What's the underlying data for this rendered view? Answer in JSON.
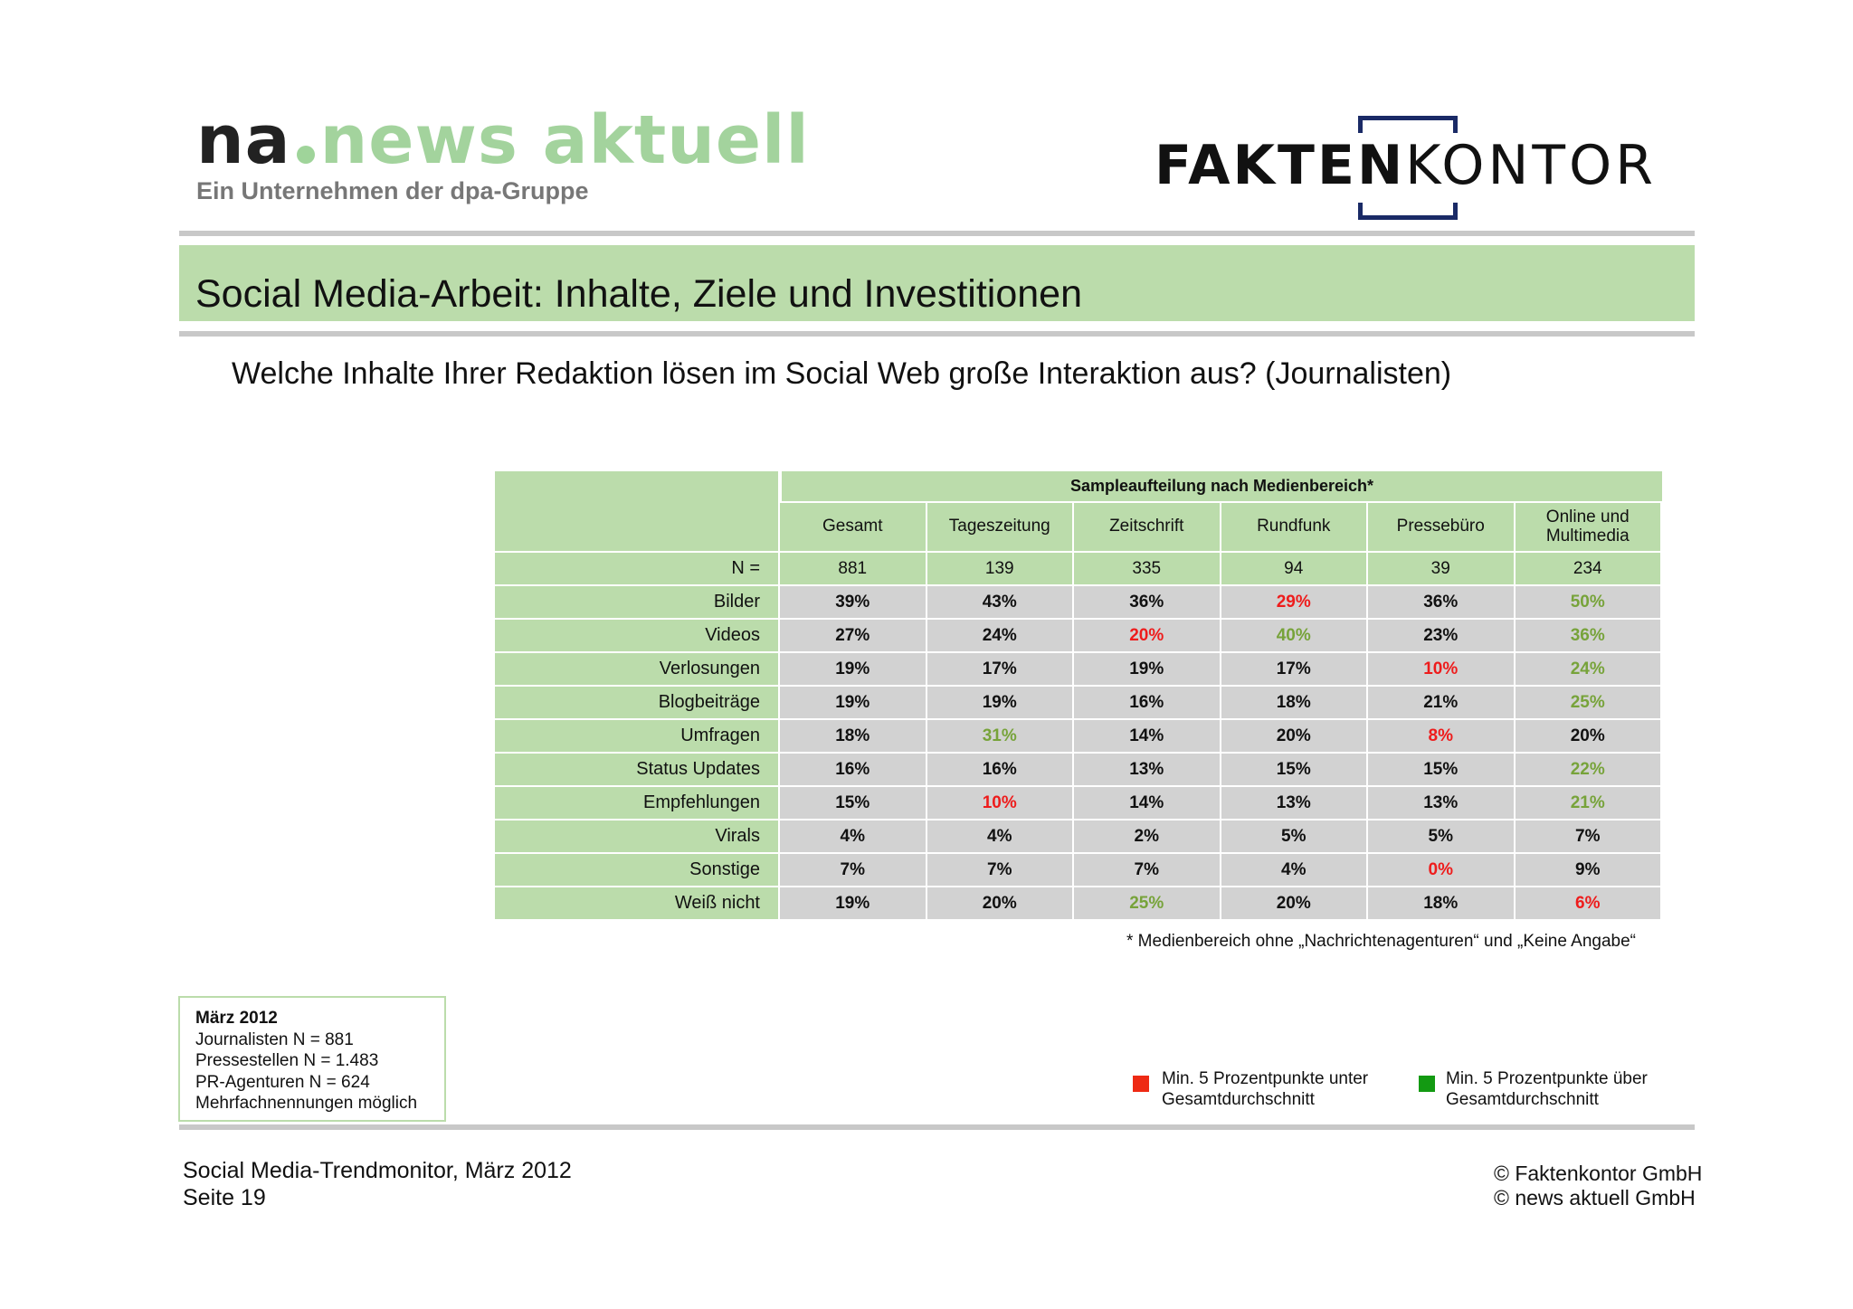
{
  "logos": {
    "na": {
      "prefix": "na",
      "name": "news aktuell",
      "tagline": "Ein Unternehmen der dpa-Gruppe"
    },
    "faktenkontor": {
      "part1": "FAKTEN",
      "part2": "KONTOR"
    }
  },
  "title": "Social Media-Arbeit: Inhalte, Ziele und Investitionen",
  "question": "Welche Inhalte Ihrer Redaktion lösen im Social Web große Interaktion aus? (Journalisten)",
  "table": {
    "group_header": "Sampleaufteilung nach Medienbereich*",
    "columns": [
      "Gesamt",
      "Tageszeitung",
      "Zeitschrift",
      "Rundfunk",
      "Pressebüro",
      "Online und Multimedia"
    ],
    "n_row": {
      "label": "N =",
      "values": [
        "881",
        "139",
        "335",
        "94",
        "39",
        "234"
      ]
    },
    "rows": [
      {
        "label": "Bilder",
        "values": [
          "39%",
          "43%",
          "36%",
          "29%",
          "36%",
          "50%"
        ],
        "flags": [
          "",
          "",
          "",
          "low",
          "",
          "high"
        ]
      },
      {
        "label": "Videos",
        "values": [
          "27%",
          "24%",
          "20%",
          "40%",
          "23%",
          "36%"
        ],
        "flags": [
          "",
          "",
          "low",
          "high",
          "",
          "high"
        ]
      },
      {
        "label": "Verlosungen",
        "values": [
          "19%",
          "17%",
          "19%",
          "17%",
          "10%",
          "24%"
        ],
        "flags": [
          "",
          "",
          "",
          "",
          "low",
          "high"
        ]
      },
      {
        "label": "Blogbeiträge",
        "values": [
          "19%",
          "19%",
          "16%",
          "18%",
          "21%",
          "25%"
        ],
        "flags": [
          "",
          "",
          "",
          "",
          "",
          "high"
        ]
      },
      {
        "label": "Umfragen",
        "values": [
          "18%",
          "31%",
          "14%",
          "20%",
          "8%",
          "20%"
        ],
        "flags": [
          "",
          "high",
          "",
          "",
          "low",
          ""
        ]
      },
      {
        "label": "Status Updates",
        "values": [
          "16%",
          "16%",
          "13%",
          "15%",
          "15%",
          "22%"
        ],
        "flags": [
          "",
          "",
          "",
          "",
          "",
          "high"
        ]
      },
      {
        "label": "Empfehlungen",
        "values": [
          "15%",
          "10%",
          "14%",
          "13%",
          "13%",
          "21%"
        ],
        "flags": [
          "",
          "low",
          "",
          "",
          "",
          "high"
        ]
      },
      {
        "label": "Virals",
        "values": [
          "4%",
          "4%",
          "2%",
          "5%",
          "5%",
          "7%"
        ],
        "flags": [
          "",
          "",
          "",
          "",
          "",
          ""
        ]
      },
      {
        "label": "Sonstige",
        "values": [
          "7%",
          "7%",
          "7%",
          "4%",
          "0%",
          "9%"
        ],
        "flags": [
          "",
          "",
          "",
          "",
          "low",
          ""
        ]
      },
      {
        "label": "Weiß nicht",
        "values": [
          "19%",
          "20%",
          "25%",
          "20%",
          "18%",
          "6%"
        ],
        "flags": [
          "",
          "",
          "high",
          "",
          "",
          "low"
        ]
      }
    ]
  },
  "footnote": "* Medienbereich ohne „Nachrichtenagenturen“ und  „Keine Angabe“",
  "info_box": {
    "title": "März 2012",
    "lines": [
      "Journalisten N = 881",
      "Pressestellen N = 1.483",
      "PR-Agenturen N = 624",
      "Mehrfachnennungen möglich"
    ]
  },
  "legend": {
    "low": {
      "line1": "Min. 5 Prozentpunkte unter",
      "line2": "Gesamtdurchschnitt",
      "color": "#ee2a14"
    },
    "high": {
      "line1": "Min. 5 Prozentpunkte über",
      "line2": "Gesamtdurchschnitt",
      "color": "#139a12"
    }
  },
  "footer": {
    "left_line1": "Social Media-Trendmonitor, März 2012",
    "left_line2": "Seite 19",
    "right_line1": "© Faktenkontor GmbH",
    "right_line2": "© news aktuell GmbH"
  },
  "colors": {
    "green_band": "#bbdcab",
    "value_cell": "#d2d2d2",
    "low_text": "#ee1c1c",
    "high_text": "#77a33a"
  }
}
